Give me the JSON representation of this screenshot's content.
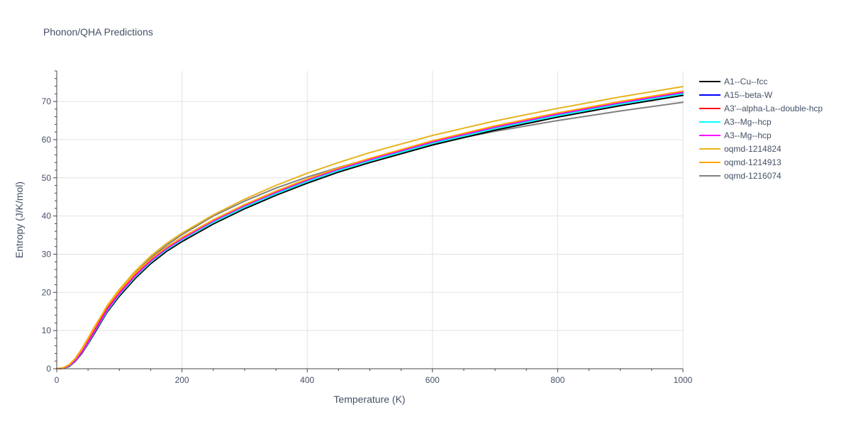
{
  "chart_data": {
    "type": "line",
    "title": "Phonon/QHA Predictions",
    "xlabel": "Temperature (K)",
    "ylabel": "Entropy (J/K/mol)",
    "xlim": [
      0,
      1000
    ],
    "ylim": [
      0,
      78
    ],
    "x_ticks": [
      0,
      200,
      400,
      600,
      800,
      1000
    ],
    "y_ticks": [
      0,
      10,
      20,
      30,
      40,
      50,
      60,
      70
    ],
    "grid": true,
    "legend_position": "right",
    "x": [
      0,
      10,
      20,
      30,
      40,
      50,
      60,
      80,
      100,
      125,
      150,
      175,
      200,
      250,
      300,
      350,
      400,
      450,
      500,
      600,
      700,
      800,
      900,
      1000
    ],
    "series": [
      {
        "name": "oqmd-1216074",
        "color": "#808080",
        "values": [
          0,
          0.2,
          1.0,
          2.6,
          4.8,
          7.4,
          10.1,
          15.5,
          20.2,
          25.1,
          29.0,
          32.3,
          35.1,
          40.0,
          43.9,
          47.3,
          50.2,
          52.7,
          55.0,
          58.9,
          62.2,
          65.0,
          67.5,
          69.8
        ]
      },
      {
        "name": "A1--Cu--fcc",
        "color": "#000000",
        "values": [
          0,
          0.1,
          0.6,
          2.0,
          4.0,
          6.5,
          9.2,
          14.7,
          19.0,
          23.6,
          27.5,
          30.7,
          33.3,
          37.9,
          41.9,
          45.4,
          48.6,
          51.5,
          54.0,
          58.6,
          62.5,
          65.9,
          68.9,
          71.6
        ]
      },
      {
        "name": "A15--beta-W",
        "color": "#0000ff",
        "values": [
          0,
          0.1,
          0.8,
          2.2,
          4.3,
          6.8,
          9.6,
          15.2,
          19.5,
          24.1,
          28.0,
          31.2,
          33.8,
          38.4,
          42.4,
          45.9,
          49.1,
          52.0,
          54.5,
          59.1,
          63.0,
          66.4,
          69.4,
          72.1
        ]
      },
      {
        "name": "A3'--alpha-La--double-hcp",
        "color": "#ff0000",
        "values": [
          0,
          0.15,
          0.9,
          2.4,
          4.5,
          7.1,
          9.9,
          15.5,
          19.9,
          24.5,
          28.4,
          31.6,
          34.2,
          38.9,
          42.9,
          46.4,
          49.6,
          52.5,
          55.0,
          59.6,
          63.5,
          66.9,
          69.9,
          72.6
        ]
      },
      {
        "name": "A3--Mg--hcp",
        "color": "#00ffff",
        "values": [
          0,
          0.1,
          0.7,
          2.1,
          4.2,
          6.7,
          9.5,
          15.0,
          19.4,
          24.0,
          27.9,
          31.1,
          33.7,
          38.3,
          42.3,
          45.8,
          49.0,
          51.9,
          54.4,
          59.0,
          62.9,
          66.3,
          69.3,
          72.0
        ]
      },
      {
        "name": "A3--Mg--hcp",
        "color": "#ff00ff",
        "values": [
          0,
          0.1,
          0.8,
          2.2,
          4.3,
          6.9,
          9.7,
          15.3,
          19.7,
          24.3,
          28.2,
          31.4,
          34.0,
          38.7,
          42.7,
          46.2,
          49.4,
          52.3,
          54.8,
          59.4,
          63.3,
          66.7,
          69.7,
          72.4
        ]
      },
      {
        "name": "oqmd-1214824",
        "color": "#e6b41e",
        "values": [
          0,
          0.2,
          1.0,
          2.7,
          5.0,
          7.8,
          10.6,
          16.4,
          20.8,
          25.5,
          29.5,
          32.8,
          35.5,
          40.3,
          44.4,
          48.0,
          51.2,
          54.0,
          56.6,
          61.1,
          64.9,
          68.2,
          71.2,
          73.9
        ]
      },
      {
        "name": "oqmd-1214913",
        "color": "#ffa500",
        "values": [
          0,
          0.2,
          1.1,
          2.8,
          5.2,
          8.0,
          10.9,
          16.2,
          20.4,
          24.9,
          28.7,
          31.8,
          34.4,
          39.0,
          43.0,
          46.5,
          49.7,
          52.6,
          55.1,
          59.7,
          63.6,
          67.0,
          70.0,
          72.7
        ]
      }
    ]
  }
}
